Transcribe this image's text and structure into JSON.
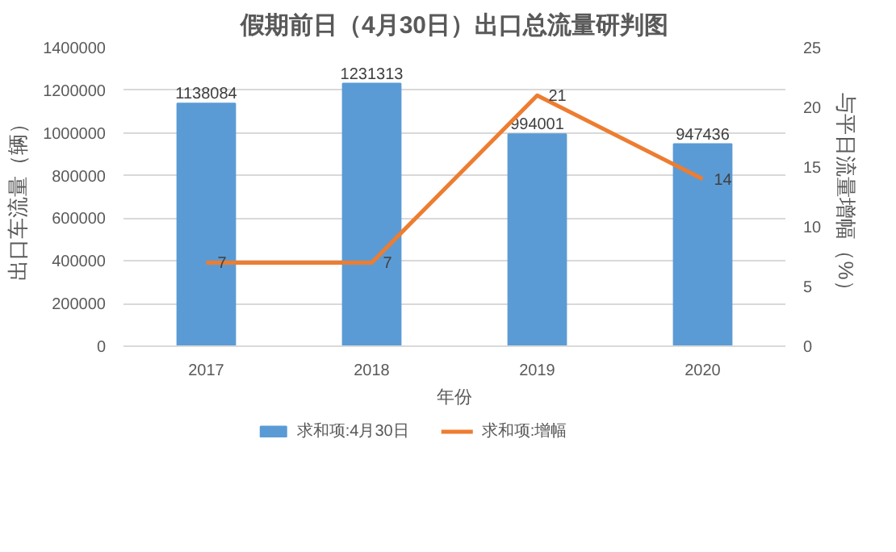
{
  "chart_data": {
    "type": "bar",
    "title": "假期前日（4月30日）出口总流量研判图",
    "xlabel": "年份",
    "ylabel": "出口车流量（辆）",
    "y2label": "与平日流量增幅（%）",
    "categories": [
      "2017",
      "2018",
      "2019",
      "2020"
    ],
    "series": [
      {
        "name": "求和项:4月30日",
        "color": "#5b9bd5",
        "values": [
          1138084,
          1231313,
          994001,
          947436
        ]
      },
      {
        "name": "求和项:增幅",
        "type": "line",
        "axis": "y2",
        "color": "#ed7d31",
        "values": [
          7,
          7,
          21,
          14
        ]
      }
    ],
    "ylim": [
      0,
      1400000
    ],
    "yticks": [
      0,
      200000,
      400000,
      600000,
      800000,
      1000000,
      1200000,
      1400000
    ],
    "y2lim": [
      0,
      25
    ],
    "y2ticks": [
      0,
      5,
      10,
      15,
      20,
      25
    ],
    "data_labels": true,
    "grid": "y",
    "legend": "bottom",
    "marker": "none",
    "line_style": "solid"
  }
}
